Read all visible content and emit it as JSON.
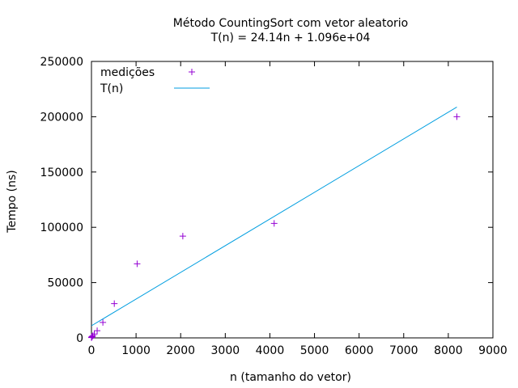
{
  "chart_data": {
    "type": "scatter",
    "title_line1": "Método CountingSort com vetor aleatorio",
    "title_line2": "T(n) = 24.14n + 1.096e+04",
    "xlabel": "n (tamanho do vetor)",
    "ylabel": "Tempo (ns)",
    "xlim": [
      0,
      9000
    ],
    "ylim": [
      0,
      250000
    ],
    "xticks": [
      "0",
      "1000",
      "2000",
      "3000",
      "4000",
      "5000",
      "6000",
      "7000",
      "8000",
      "9000"
    ],
    "yticks": [
      "0",
      "50000",
      "100000",
      "150000",
      "200000",
      "250000"
    ],
    "grid": false,
    "legend_position": "top-left",
    "series": [
      {
        "name": "medições",
        "kind": "points",
        "marker": "plus",
        "color": "#9400d3",
        "x": [
          1,
          2,
          4,
          8,
          16,
          32,
          64,
          128,
          256,
          512,
          1024,
          2048,
          4096,
          8192
        ],
        "y": [
          300,
          400,
          600,
          900,
          1300,
          2000,
          3500,
          6500,
          14000,
          31000,
          67000,
          92000,
          103500,
          200000
        ]
      },
      {
        "name": "T(n)",
        "kind": "line",
        "color": "#009ee0",
        "x": [
          0,
          8192
        ],
        "y": [
          10960,
          208715
        ]
      }
    ]
  }
}
